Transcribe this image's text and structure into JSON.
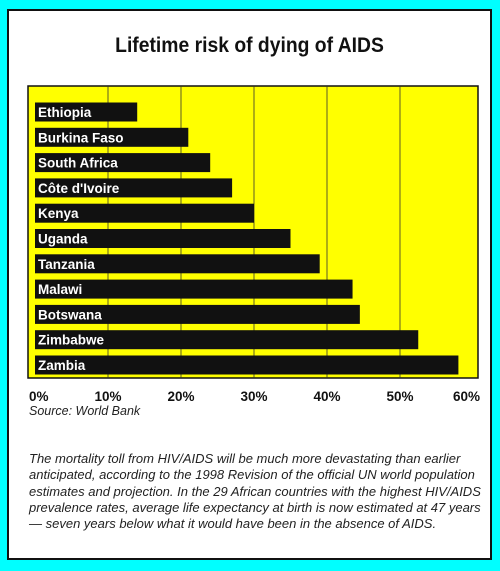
{
  "title": "Lifetime risk of dying of AIDS",
  "colors": {
    "background": "#00ffff",
    "plot_area": "#ffff00",
    "bars": "#111111",
    "bar_labels": "#ffffff"
  },
  "chart_data": {
    "type": "bar",
    "orientation": "horizontal",
    "title": "Lifetime risk of dying of AIDS",
    "categories": [
      "Ethiopia",
      "Burkina Faso",
      "South Africa",
      "Côte d'Ivoire",
      "Kenya",
      "Uganda",
      "Tanzania",
      "Malawi",
      "Botswana",
      "Zimbabwe",
      "Zambia"
    ],
    "values": [
      14,
      21,
      24,
      27,
      30,
      35,
      39,
      43.5,
      44.5,
      52.5,
      58
    ],
    "xlim": [
      0,
      60
    ],
    "xticks": [
      0,
      10,
      20,
      30,
      40,
      50,
      60
    ],
    "xtick_labels": [
      "0%",
      "10%",
      "20%",
      "30%",
      "40%",
      "50%",
      "60%"
    ],
    "grid": true
  },
  "source": "Source: World Bank",
  "caption": "The mortality toll from HIV/AIDS will be much more devastating than earlier anticipated, according to the 1998 Revision of the official UN world population estimates and projection. In the 29 African countries with the highest HIV/AIDS prevalence rates, average life expectancy at birth is now estimated at 47 years — seven years below what it would have been in the absence of AIDS."
}
